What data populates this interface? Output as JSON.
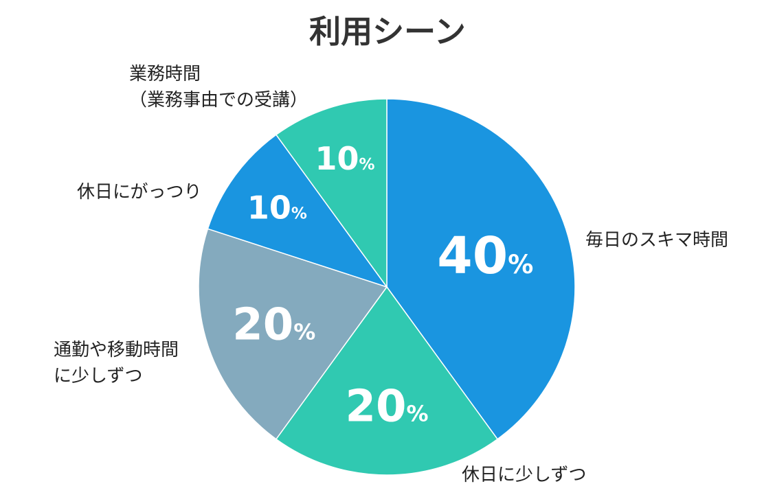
{
  "chart_data": {
    "type": "pie",
    "title": "利用シーン",
    "categories": [
      "毎日のスキマ時間",
      "休日に少しずつ",
      "通勤や移動時間に少しずつ",
      "休日にがっつり",
      "業務時間（業務事由での受講）"
    ],
    "category_lines": [
      [
        "毎日のスキマ時間"
      ],
      [
        "休日に少しずつ"
      ],
      [
        "通勤や移動時間",
        "に少しずつ"
      ],
      [
        "休日にがっつり"
      ],
      [
        "業務時間",
        "（業務事由での受講）"
      ]
    ],
    "values": [
      40,
      20,
      20,
      10,
      10
    ],
    "value_labels": [
      "40",
      "20",
      "20",
      "10",
      "10"
    ],
    "unit": "%",
    "colors": [
      "#1a95e0",
      "#30c9b1",
      "#84aabe",
      "#1a95e0",
      "#30c9b1"
    ],
    "start": "12 o'clock",
    "direction": "clockwise"
  }
}
